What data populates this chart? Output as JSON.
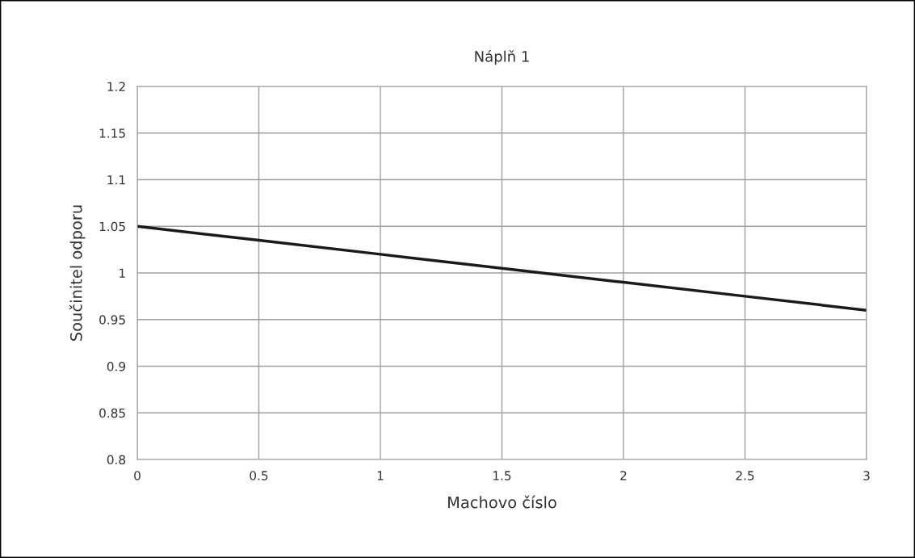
{
  "chart_data": {
    "type": "line",
    "title": "Náplň 1",
    "xlabel": "Machovo číslo",
    "ylabel": "Součinitel odporu",
    "x": [
      0,
      0.5,
      1,
      1.5,
      2,
      2.5,
      3
    ],
    "series": [
      {
        "color": "#1a1a1a",
        "values": [
          1.05,
          1.035,
          1.02,
          1.005,
          0.99,
          0.975,
          0.96
        ]
      }
    ],
    "xlim": [
      0,
      3
    ],
    "xticks": [
      0,
      0.5,
      1,
      1.5,
      2,
      2.5,
      3
    ],
    "ylim": [
      0.8,
      1.2
    ],
    "yticks": [
      0.8,
      0.85,
      0.9,
      0.95,
      1,
      1.05,
      1.1,
      1.15,
      1.2
    ],
    "grid": true,
    "legend": false,
    "marker": "none",
    "line_style": "solid"
  }
}
